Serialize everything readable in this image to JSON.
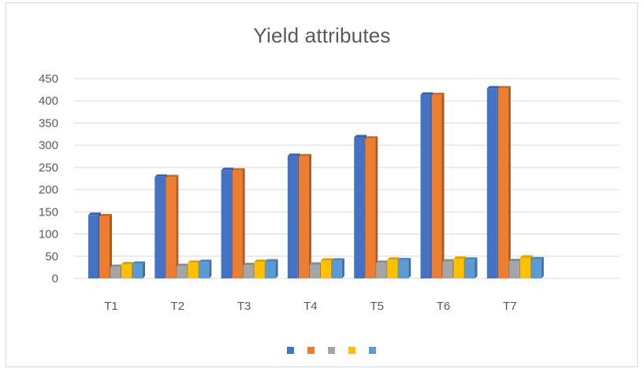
{
  "chart_data": {
    "type": "bar",
    "title": "Yield attributes",
    "xlabel": "",
    "ylabel": "",
    "categories": [
      "T1",
      "T2",
      "T3",
      "T4",
      "T5",
      "T6",
      "T7"
    ],
    "series": [
      {
        "color": "#4472c4",
        "values": [
          143,
          229,
          244,
          276,
          318,
          414,
          428
        ]
      },
      {
        "color": "#ed7d31",
        "values": [
          140,
          228,
          243,
          275,
          315,
          413,
          428
        ]
      },
      {
        "color": "#a5a5a5",
        "values": [
          26,
          28,
          30,
          31,
          35,
          38,
          39
        ]
      },
      {
        "color": "#ffc000",
        "values": [
          32,
          35,
          37,
          40,
          42,
          44,
          47
        ]
      },
      {
        "color": "#5b9bd5",
        "values": [
          33,
          37,
          38,
          40,
          41,
          42,
          43
        ]
      }
    ],
    "ylim": [
      0,
      450
    ],
    "yticks": [
      0,
      50,
      100,
      150,
      200,
      250,
      300,
      350,
      400,
      450
    ],
    "grid": true,
    "legend": "bottom"
  }
}
